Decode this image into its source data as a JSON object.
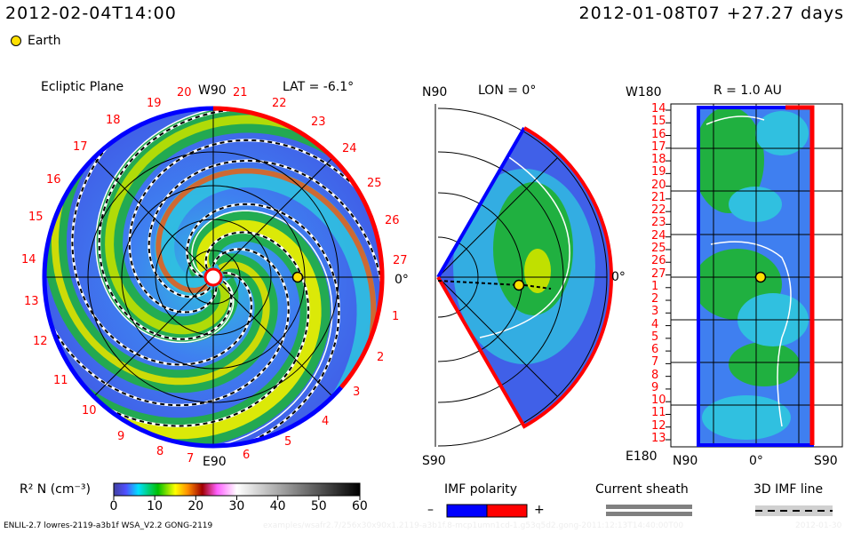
{
  "header": {
    "model_time": "2012-02-04T14:00",
    "ref_time": "2012-01-08T07 +27.27 days",
    "earth_label": "Earth"
  },
  "ecliptic": {
    "title": "Ecliptic Plane",
    "top_label": "W90",
    "bottom_label": "E90",
    "lat_label": "LAT = -6.1°",
    "right_label": "0°",
    "hour_labels": [
      "1",
      "2",
      "3",
      "4",
      "5",
      "6",
      "7",
      "8",
      "9",
      "10",
      "11",
      "12",
      "13",
      "14",
      "15",
      "16",
      "17",
      "18",
      "19",
      "20",
      "21",
      "22",
      "23",
      "24",
      "25",
      "26",
      "27"
    ]
  },
  "meridional": {
    "top_label": "N90",
    "bottom_label": "S90",
    "lon_label": "LON = 0°",
    "right_label": "0°"
  },
  "radial": {
    "title": "R = 1.0 AU",
    "top_label": "W180",
    "bottom_label": "E180",
    "x_left": "N90",
    "x_mid": "0°",
    "x_right": "S90",
    "y_labels": [
      "14",
      "15",
      "16",
      "17",
      "18",
      "19",
      "20",
      "21",
      "22",
      "23",
      "24",
      "25",
      "26",
      "27",
      "1",
      "2",
      "3",
      "4",
      "5",
      "6",
      "7",
      "8",
      "9",
      "10",
      "11",
      "12",
      "13"
    ]
  },
  "colorbar": {
    "label": "R² N (cm⁻³)",
    "ticks": [
      "0",
      "10",
      "20",
      "30",
      "40",
      "50",
      "60"
    ]
  },
  "legend": {
    "imf_title": "IMF polarity",
    "minus": "–",
    "plus": "+",
    "sheath_title": "Current sheath",
    "imf_line_title": "3D IMF line"
  },
  "footer": {
    "run_info": "ENLIL-2.7 lowres-2119-a3b1f WSA_V2.2 GONG-2119",
    "path": "examples/wsafr2.7/256x30x90x1.2119-a3b1f.8-mcp1umn1cd-1.g53q5d2.gong-2011:12:13T14:40:00T00",
    "date": "2012-01-30"
  },
  "colors": {
    "positive": "#ff0000",
    "negative": "#0000ff",
    "earth": "#ffe000"
  }
}
